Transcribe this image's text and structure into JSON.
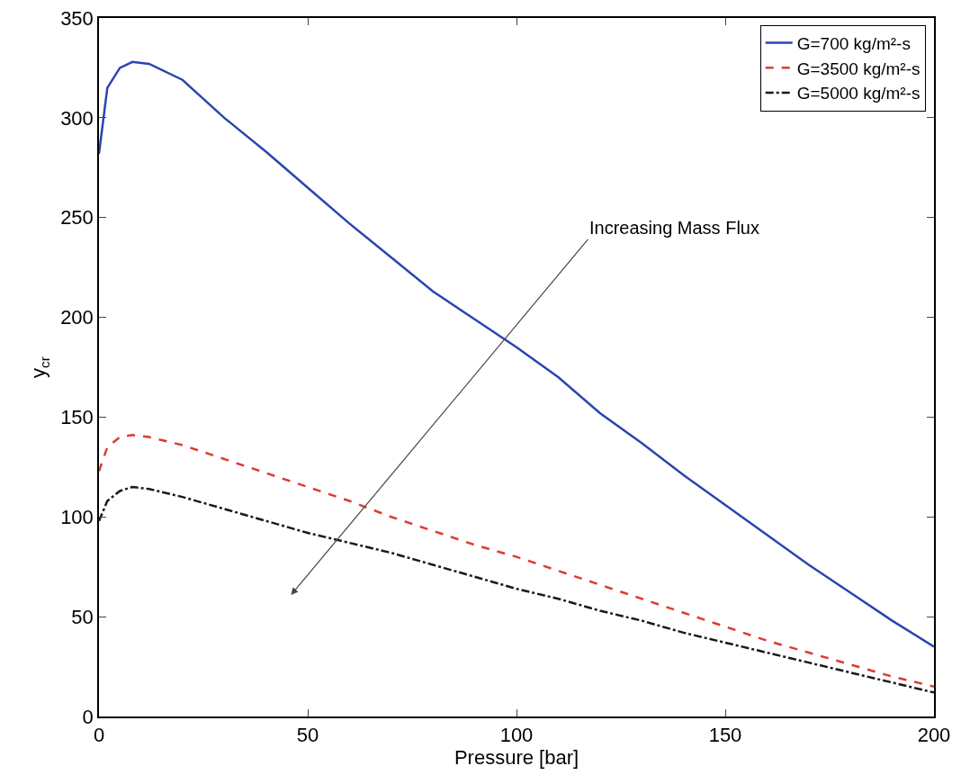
{
  "chart_data": {
    "type": "line",
    "xlabel": "Pressure [bar]",
    "ylabel": "y$_{cr}$",
    "x": [
      0,
      2,
      5,
      8,
      12,
      20,
      30,
      40,
      50,
      60,
      70,
      80,
      90,
      100,
      110,
      120,
      130,
      140,
      150,
      160,
      170,
      180,
      190,
      200
    ],
    "series": [
      {
        "name": "G=700 kg/m²-s",
        "color": "#2a45b0",
        "line_style": "solid",
        "values": [
          282,
          315,
          325,
          328,
          327,
          319,
          300,
          283,
          265,
          247,
          230,
          213,
          199,
          185,
          170,
          152,
          137,
          121,
          106,
          91,
          76,
          62,
          48,
          35
        ]
      },
      {
        "name": "G=3500 kg/m²-s",
        "color": "#e03a2f",
        "line_style": "dashed",
        "values": [
          123,
          135,
          140,
          141,
          140,
          136,
          129,
          122,
          115,
          108,
          100,
          93,
          86,
          80,
          73,
          66,
          59,
          52,
          45,
          38,
          32,
          26,
          20,
          15
        ]
      },
      {
        "name": "G=5000 kg/m²-s",
        "color": "#1a1a1a",
        "line_style": "dashdot",
        "values": [
          98,
          108,
          113,
          115,
          114,
          110,
          104,
          98,
          92,
          87,
          82,
          76,
          70,
          64,
          59,
          53,
          48,
          42,
          37,
          32,
          27,
          22,
          17,
          12
        ]
      }
    ],
    "xlim": [
      0,
      200
    ],
    "xticks": [
      0,
      50,
      100,
      150,
      200
    ],
    "ylim": [
      0,
      350
    ],
    "yticks": [
      0,
      50,
      100,
      150,
      200,
      250,
      300,
      350
    ],
    "grid": false,
    "legend": "top right",
    "marker": "none",
    "annotations": [
      "Increasing Mass Flux"
    ]
  }
}
